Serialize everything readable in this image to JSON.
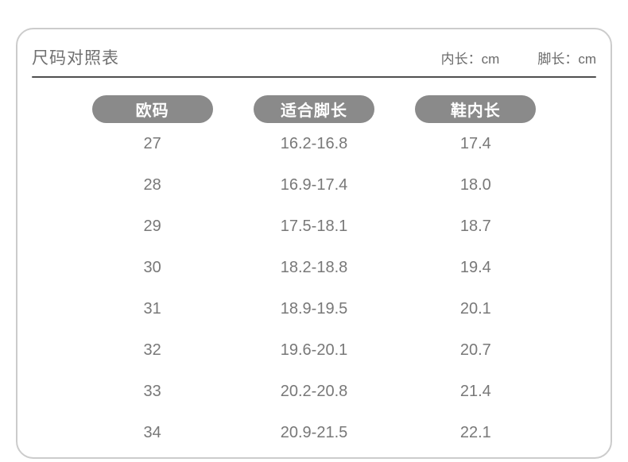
{
  "header": {
    "title": "尺码对照表",
    "unit_inner": "内长：cm",
    "unit_foot": "脚长：cm"
  },
  "table": {
    "columns": [
      "欧码",
      "适合脚长",
      "鞋内长"
    ],
    "rows": [
      [
        "27",
        "16.2-16.8",
        "17.4"
      ],
      [
        "28",
        "16.9-17.4",
        "18.0"
      ],
      [
        "29",
        "17.5-18.1",
        "18.7"
      ],
      [
        "30",
        "18.2-18.8",
        "19.4"
      ],
      [
        "31",
        "18.9-19.5",
        "20.1"
      ],
      [
        "32",
        "19.6-20.1",
        "20.7"
      ],
      [
        "33",
        "20.2-20.8",
        "21.4"
      ],
      [
        "34",
        "20.9-21.5",
        "22.1"
      ]
    ]
  },
  "colors": {
    "pill_bg": "#8a8a8a",
    "pill_text": "#ffffff",
    "data_text": "#787878",
    "title_text": "#707070",
    "card_border": "#cccccc",
    "header_rule": "#4f4f4f"
  }
}
